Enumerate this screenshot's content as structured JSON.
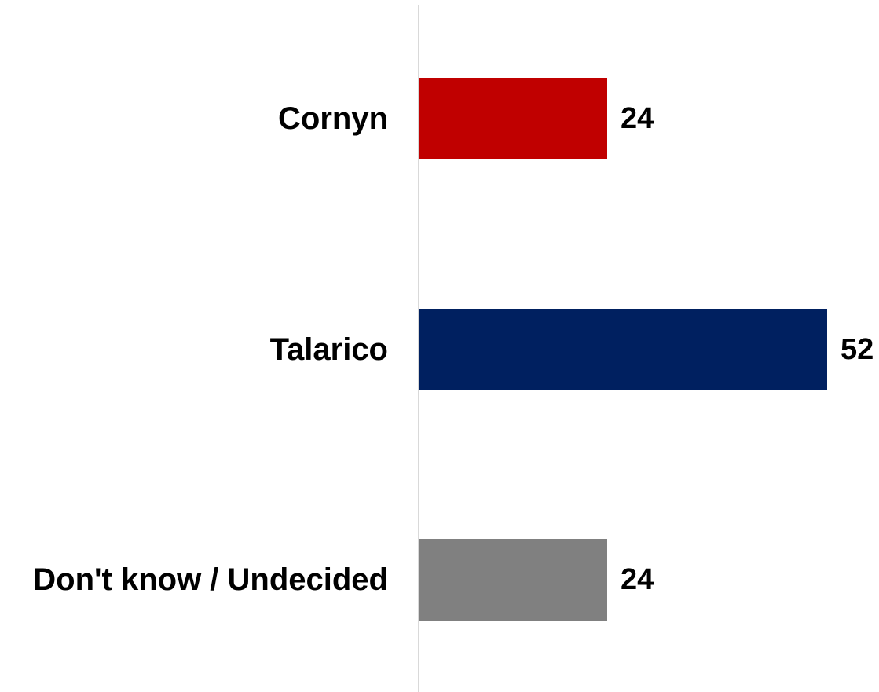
{
  "chart_data": {
    "type": "bar",
    "orientation": "horizontal",
    "categories": [
      "Cornyn",
      "Talarico",
      "Don't know / Undecided"
    ],
    "values": [
      24,
      52,
      24
    ],
    "colors": [
      "#c00000",
      "#002060",
      "#808080"
    ],
    "axis_color": "#d9d9d9",
    "title": "",
    "xlabel": "",
    "ylabel": "",
    "xlim": [
      0,
      52
    ],
    "grid": false,
    "legend": "none",
    "data_labels": true
  }
}
